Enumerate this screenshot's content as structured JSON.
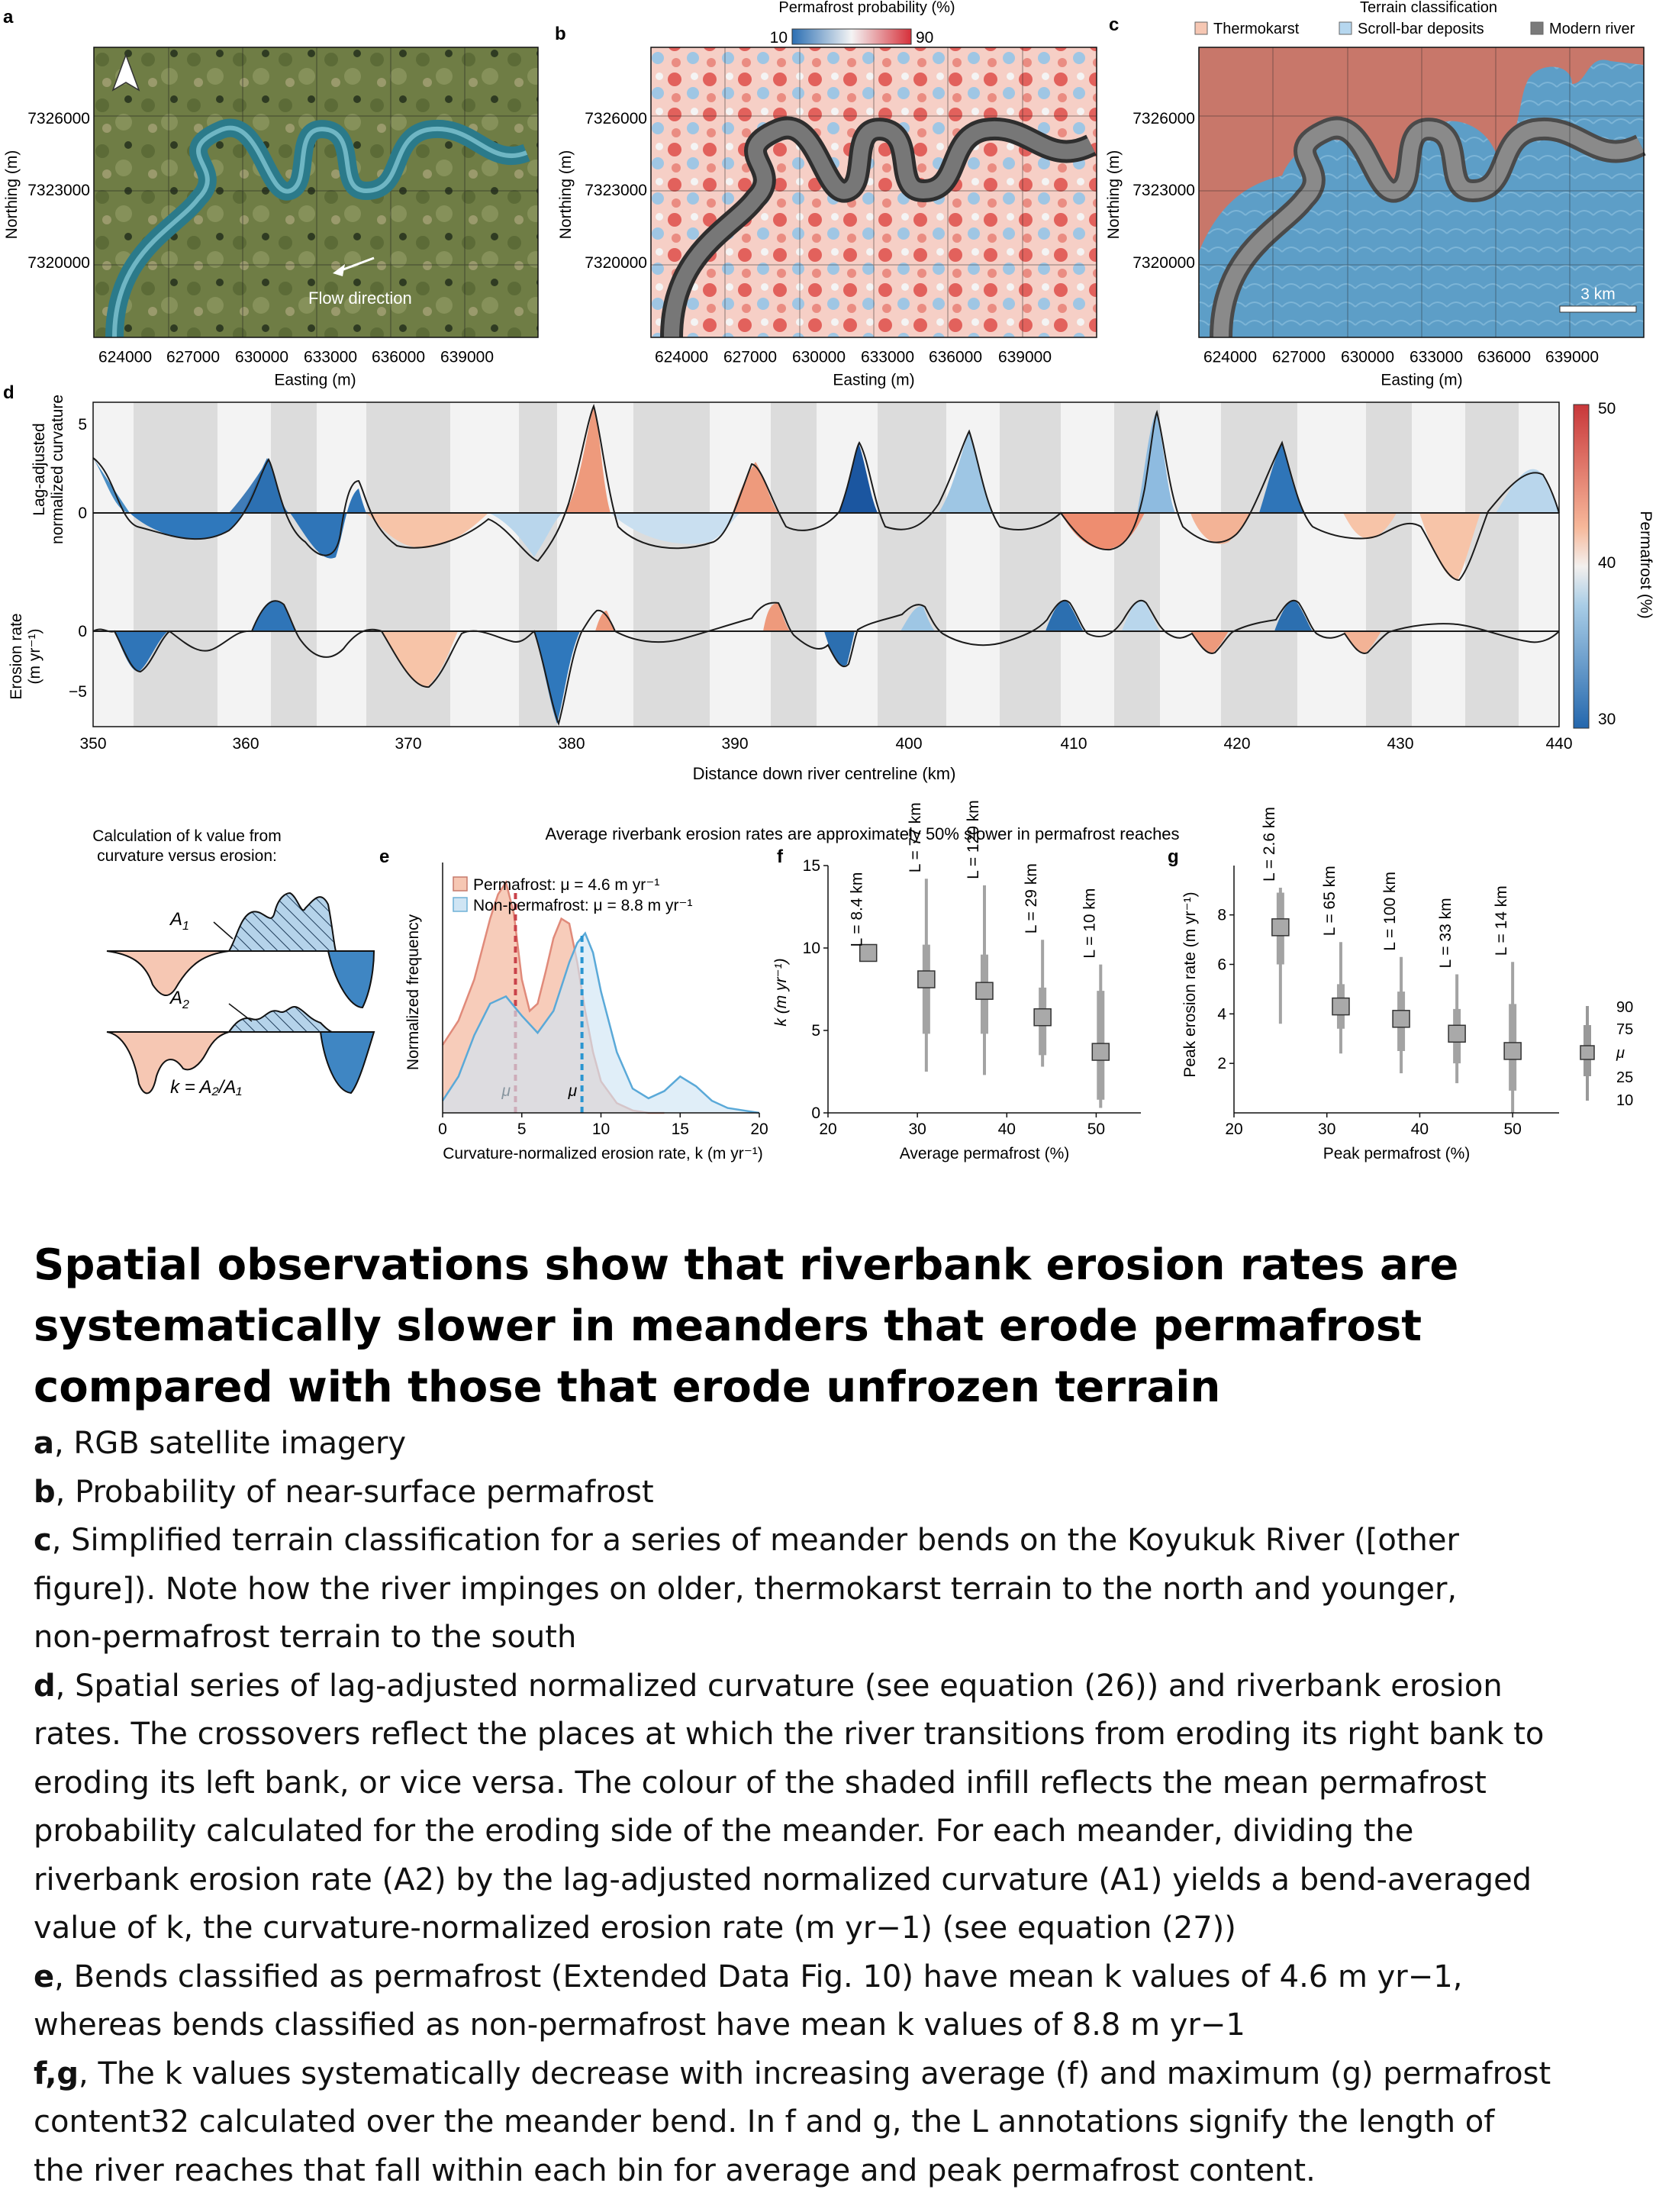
{
  "panels": {
    "a": {
      "letter": "a",
      "easting_ticks": [
        "624000",
        "627000",
        "630000",
        "633000",
        "636000",
        "639000"
      ],
      "northing_ticks": [
        "7326000",
        "7323000",
        "7320000"
      ],
      "xlabel": "Easting (m)",
      "ylabel": "Northing (m)",
      "annotation": "Flow direction"
    },
    "b": {
      "letter": "b",
      "colorbar_title": "Permafrost probability (%)",
      "colorbar_min": "10",
      "colorbar_max": "90",
      "easting_ticks": [
        "624000",
        "627000",
        "630000",
        "633000",
        "636000",
        "639000"
      ],
      "northing_ticks": [
        "7326000",
        "7323000",
        "7320000"
      ],
      "xlabel": "Easting (m)",
      "ylabel": "Northing (m)"
    },
    "c": {
      "letter": "c",
      "legend_title": "Terrain classification",
      "legend": [
        {
          "label": "Thermokarst",
          "color": "#f6c7b3"
        },
        {
          "label": "Scroll-bar deposits",
          "color": "#b6d7ef"
        },
        {
          "label": "Modern river",
          "color": "#7a7a7a"
        }
      ],
      "scalebar": "3 km",
      "easting_ticks": [
        "624000",
        "627000",
        "630000",
        "633000",
        "636000",
        "639000"
      ],
      "northing_ticks": [
        "7326000",
        "7323000",
        "7320000"
      ],
      "xlabel": "Easting (m)",
      "ylabel": "Northing (m)"
    },
    "d": {
      "letter": "d",
      "ylabel_top": [
        "Lag-adjusted",
        "normalized curvature"
      ],
      "ylabel_bottom": [
        "Erosion rate",
        "(m yr⁻¹)"
      ],
      "yticks_top": [
        "5",
        "0"
      ],
      "yticks_bottom": [
        "0",
        "−5"
      ],
      "xlabel": "Distance down river centreline (km)",
      "xticks": [
        "350",
        "360",
        "370",
        "380",
        "390",
        "400",
        "410",
        "420",
        "430",
        "440"
      ],
      "colorbar_label": "Permafrost (%)",
      "colorbar_ticks": [
        "50",
        "40",
        "30"
      ]
    },
    "schematic": {
      "title": [
        "Calculation of k value from",
        "curvature versus erosion:"
      ],
      "a1": "A",
      "a1_sub": "1",
      "a2": "A",
      "a2_sub": "2",
      "equation": "k = A₂/A₁"
    },
    "efg_header": "Average riverbank erosion rates are approximately 50% slower in permafrost reaches",
    "e": {
      "letter": "e",
      "legend_pf": "Permafrost: μ = 4.6 m yr⁻¹",
      "legend_npf": "Non-permafrost: μ = 8.8 m yr⁻¹",
      "mu": "μ",
      "xlabel": "Curvature-normalized erosion rate, k (m yr⁻¹)",
      "ylabel": "Normalized frequency",
      "xticks": [
        "0",
        "5",
        "10",
        "15",
        "20"
      ]
    },
    "f": {
      "letter": "f",
      "ylabel": "k (m yr⁻¹)",
      "xlabel": "Average permafrost (%)",
      "xticks": [
        "20",
        "30",
        "40",
        "50"
      ],
      "yticks": [
        "0",
        "5",
        "10",
        "15"
      ]
    },
    "g": {
      "letter": "g",
      "ylabel": "Peak erosion rate (m yr⁻¹)",
      "xlabel": "Peak permafrost (%)",
      "xticks": [
        "20",
        "30",
        "40",
        "50"
      ],
      "yticks": [
        "2",
        "4",
        "6",
        "8"
      ],
      "key": [
        "90",
        "75",
        "μ",
        "25",
        "10"
      ]
    }
  },
  "chart_data": [
    {
      "panel": "e",
      "type": "area",
      "xlabel": "Curvature-normalized erosion rate, k (m yr⁻¹)",
      "ylabel": "Normalized frequency",
      "xlim": [
        0,
        20
      ],
      "series": [
        {
          "name": "Permafrost",
          "mean": 4.6,
          "color": "#e08a7a",
          "x": [
            0,
            1,
            2,
            3,
            3.5,
            4,
            4.5,
            5,
            5.5,
            6,
            6.5,
            7,
            7.5,
            8,
            8.5,
            9,
            9.5,
            10,
            11,
            12,
            13,
            14
          ],
          "y": [
            0.28,
            0.38,
            0.55,
            0.8,
            0.9,
            0.95,
            0.82,
            0.55,
            0.42,
            0.45,
            0.58,
            0.72,
            0.8,
            0.78,
            0.62,
            0.42,
            0.25,
            0.13,
            0.04,
            0.01,
            0,
            0
          ]
        },
        {
          "name": "Non-permafrost",
          "mean": 8.8,
          "color": "#5aa9d8",
          "x": [
            0,
            1,
            2,
            3,
            4,
            5,
            6,
            7,
            8,
            8.5,
            9,
            9.5,
            10,
            11,
            12,
            13,
            14,
            15,
            16,
            17,
            18,
            19,
            20
          ],
          "y": [
            0.05,
            0.15,
            0.32,
            0.45,
            0.48,
            0.4,
            0.33,
            0.42,
            0.62,
            0.7,
            0.74,
            0.66,
            0.5,
            0.25,
            0.1,
            0.06,
            0.09,
            0.15,
            0.11,
            0.05,
            0.02,
            0.01,
            0
          ]
        }
      ]
    },
    {
      "panel": "f",
      "type": "box",
      "xlabel": "Average permafrost (%)",
      "ylabel": "k (m yr⁻¹)",
      "xlim": [
        20,
        55
      ],
      "ylim": [
        0,
        15
      ],
      "boxes": [
        {
          "x": 24.5,
          "label": "L = 8.4 km",
          "mean": 9.7,
          "p10": 9.7,
          "p25": 9.7,
          "p75": 9.7,
          "p90": 9.7
        },
        {
          "x": 31,
          "label": "L = 77 km",
          "mean": 8.1,
          "p10": 2.5,
          "p25": 4.8,
          "p75": 10.2,
          "p90": 14.2
        },
        {
          "x": 37.5,
          "label": "L = 120 km",
          "mean": 7.4,
          "p10": 2.3,
          "p25": 4.8,
          "p75": 9.6,
          "p90": 13.8
        },
        {
          "x": 44,
          "label": "L = 29 km",
          "mean": 5.8,
          "p10": 2.8,
          "p25": 3.5,
          "p75": 7.6,
          "p90": 10.5
        },
        {
          "x": 50.5,
          "label": "L = 10 km",
          "mean": 3.7,
          "p10": 0.3,
          "p25": 0.8,
          "p75": 7.4,
          "p90": 9.0
        }
      ]
    },
    {
      "panel": "g",
      "type": "box",
      "xlabel": "Peak permafrost (%)",
      "ylabel": "Peak erosion rate (m yr⁻¹)",
      "xlim": [
        20,
        55
      ],
      "ylim": [
        0,
        9.5
      ],
      "boxes": [
        {
          "x": 25,
          "label": "L = 2.6 km",
          "mean": 7.5,
          "p10": 3.6,
          "p25": 6.0,
          "p75": 8.9,
          "p90": 9.1
        },
        {
          "x": 31.5,
          "label": "L = 65 km",
          "mean": 4.3,
          "p10": 2.4,
          "p25": 3.4,
          "p75": 5.2,
          "p90": 6.9
        },
        {
          "x": 38,
          "label": "L = 100 km",
          "mean": 3.8,
          "p10": 1.6,
          "p25": 2.5,
          "p75": 4.9,
          "p90": 6.3
        },
        {
          "x": 44,
          "label": "L = 33 km",
          "mean": 3.2,
          "p10": 1.2,
          "p25": 2.0,
          "p75": 4.2,
          "p90": 5.6
        },
        {
          "x": 50,
          "label": "L = 14 km",
          "mean": 2.5,
          "p10": 0.0,
          "p25": 0.9,
          "p75": 4.4,
          "p90": 6.1
        }
      ]
    }
  ],
  "caption": {
    "title": "Spatial observations show that riverbank erosion rates are systematically slower in meanders that erode permafrost compared with those that erode unfrozen terrain",
    "lines": [
      {
        "b": "a",
        "t": ", RGB satellite imagery"
      },
      {
        "b": "b",
        "t": ", Probability of near-surface permafrost"
      },
      {
        "b": "c",
        "t": ", Simplified terrain classification for a series of meander bends on the Koyukuk River ([other"
      },
      {
        "b": "",
        "t": "figure]). Note how the river impinges on older, thermokarst terrain to the north and younger,"
      },
      {
        "b": "",
        "t": "non-permafrost terrain to the south"
      },
      {
        "b": "d",
        "t": ", Spatial series of lag-adjusted normalized curvature (see equation (26)) and riverbank erosion"
      },
      {
        "b": "",
        "t": "rates. The crossovers reflect the places at which the river transitions from eroding its right bank to"
      },
      {
        "b": "",
        "t": "eroding its left bank, or vice versa. The colour of the shaded infill reflects the mean permafrost"
      },
      {
        "b": "",
        "t": "probability calculated for the eroding side of the meander. For each meander, dividing the"
      },
      {
        "b": "",
        "t": "riverbank erosion rate (A2) by the lag-adjusted normalized curvature (A1) yields a bend-averaged"
      },
      {
        "b": "",
        "t": "value of k, the curvature-normalized erosion rate (m yr−1) (see equation (27))"
      },
      {
        "b": "e",
        "t": ", Bends classified as permafrost (Extended Data Fig. 10) have mean k values of 4.6 m yr−1,"
      },
      {
        "b": "",
        "t": "whereas bends classified as non-permafrost have mean k values of 8.8 m yr−1"
      },
      {
        "b": "f,g",
        "t": ", The k values systematically decrease with increasing average (f) and maximum (g) permafrost"
      },
      {
        "b": "",
        "t": "content32 calculated over the meander bend. In f and g, the L annotations signify the length of"
      },
      {
        "b": "",
        "t": "the river reaches that fall within each bin for average and peak permafrost content."
      }
    ]
  }
}
